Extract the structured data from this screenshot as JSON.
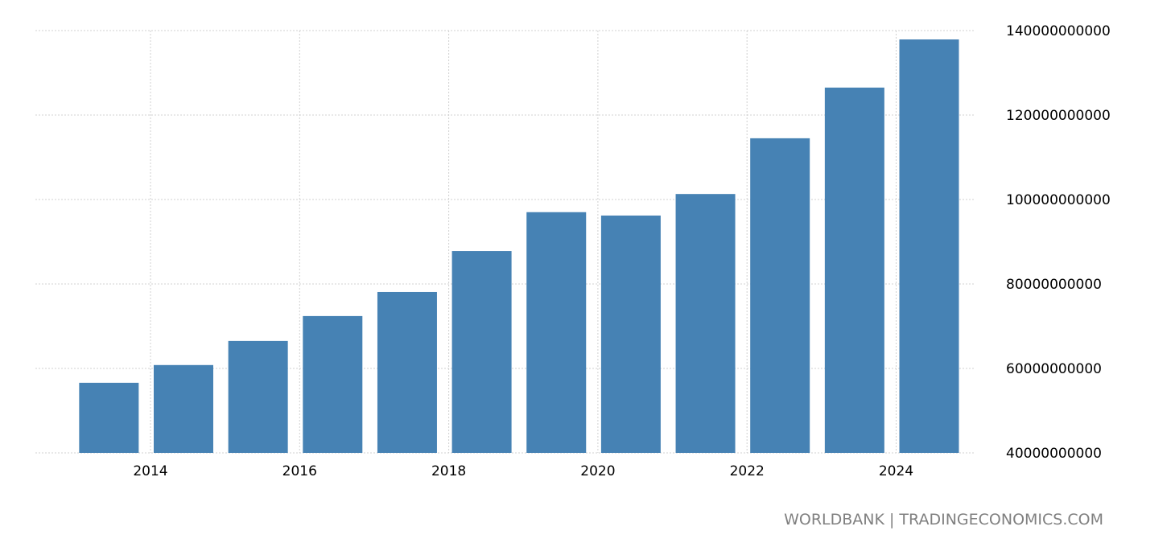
{
  "chart_data": {
    "type": "bar",
    "title": "",
    "xlabel": "",
    "ylabel": "",
    "categories": [
      2013,
      2014,
      2015,
      2016,
      2017,
      2018,
      2019,
      2020,
      2021,
      2022,
      2023,
      2024
    ],
    "values": [
      56600000000,
      60800000000,
      66500000000,
      72400000000,
      78100000000,
      87800000000,
      97000000000,
      96200000000,
      101300000000,
      114500000000,
      126500000000,
      137900000000
    ],
    "ylim": [
      40000000000,
      140000000000
    ],
    "yticks": [
      "40000000000",
      "60000000000",
      "80000000000",
      "100000000000",
      "120000000000",
      "140000000000"
    ],
    "xticks": [
      "2014",
      "2016",
      "2018",
      "2020",
      "2022",
      "2024"
    ],
    "grid": true,
    "bar_color": "#4682b4",
    "source": "WORLDBANK | TRADINGECONOMICS.COM"
  }
}
